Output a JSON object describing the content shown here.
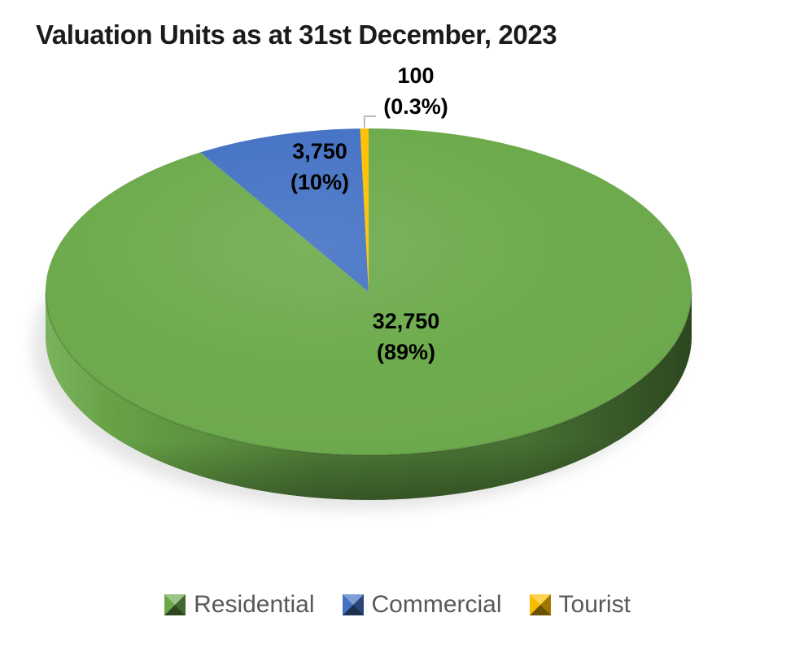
{
  "page": {
    "background": "#FFFFFF"
  },
  "chart_data": {
    "type": "pie",
    "style": "3d",
    "title": "Valuation Units as at 31st December, 2023",
    "categories": [
      "Residential",
      "Commercial",
      "Tourist"
    ],
    "values": [
      32750,
      3750,
      100
    ],
    "value_labels": [
      "32,750",
      "3,750",
      "100"
    ],
    "percent_labels": [
      "(89%)",
      "(10%)",
      "(0.3%)"
    ],
    "colors": [
      "#6CAA4B",
      "#4472C4",
      "#FFC000"
    ],
    "legend_position": "bottom",
    "start_angle": "12-oclock",
    "direction": "clockwise",
    "label_color": "#000000",
    "title_color": "#1B1B1B",
    "legend_text_color": "#595959",
    "leader_line_color": "#A6A6A6"
  }
}
